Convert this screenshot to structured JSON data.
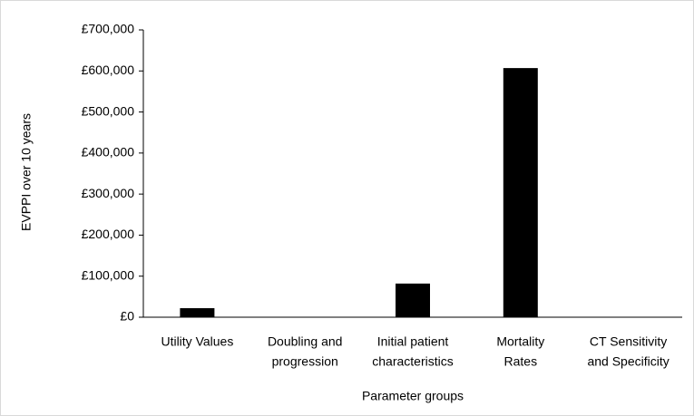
{
  "chart_data": {
    "type": "bar",
    "x_label": "Parameter groups",
    "y_label": "EVPPI over 10 years",
    "categories": [
      [
        "Utility Values"
      ],
      [
        "Doubling and",
        "progression"
      ],
      [
        "Initial patient",
        "characteristics"
      ],
      [
        "Mortality",
        "Rates"
      ],
      [
        "CT Sensitivity",
        "and Specificity"
      ]
    ],
    "values": [
      22000,
      0,
      82000,
      607000,
      0
    ],
    "color": "#000000",
    "ylim": [
      0,
      700000
    ],
    "yticks": [
      {
        "value": 0,
        "label": "£0"
      },
      {
        "value": 100000,
        "label": "£100,000"
      },
      {
        "value": 200000,
        "label": "£200,000"
      },
      {
        "value": 300000,
        "label": "£300,000"
      },
      {
        "value": 400000,
        "label": "£400,000"
      },
      {
        "value": 500000,
        "label": "£500,000"
      },
      {
        "value": 600000,
        "label": "£600,000"
      },
      {
        "value": 700000,
        "label": "£700,000"
      }
    ],
    "grid": false
  }
}
